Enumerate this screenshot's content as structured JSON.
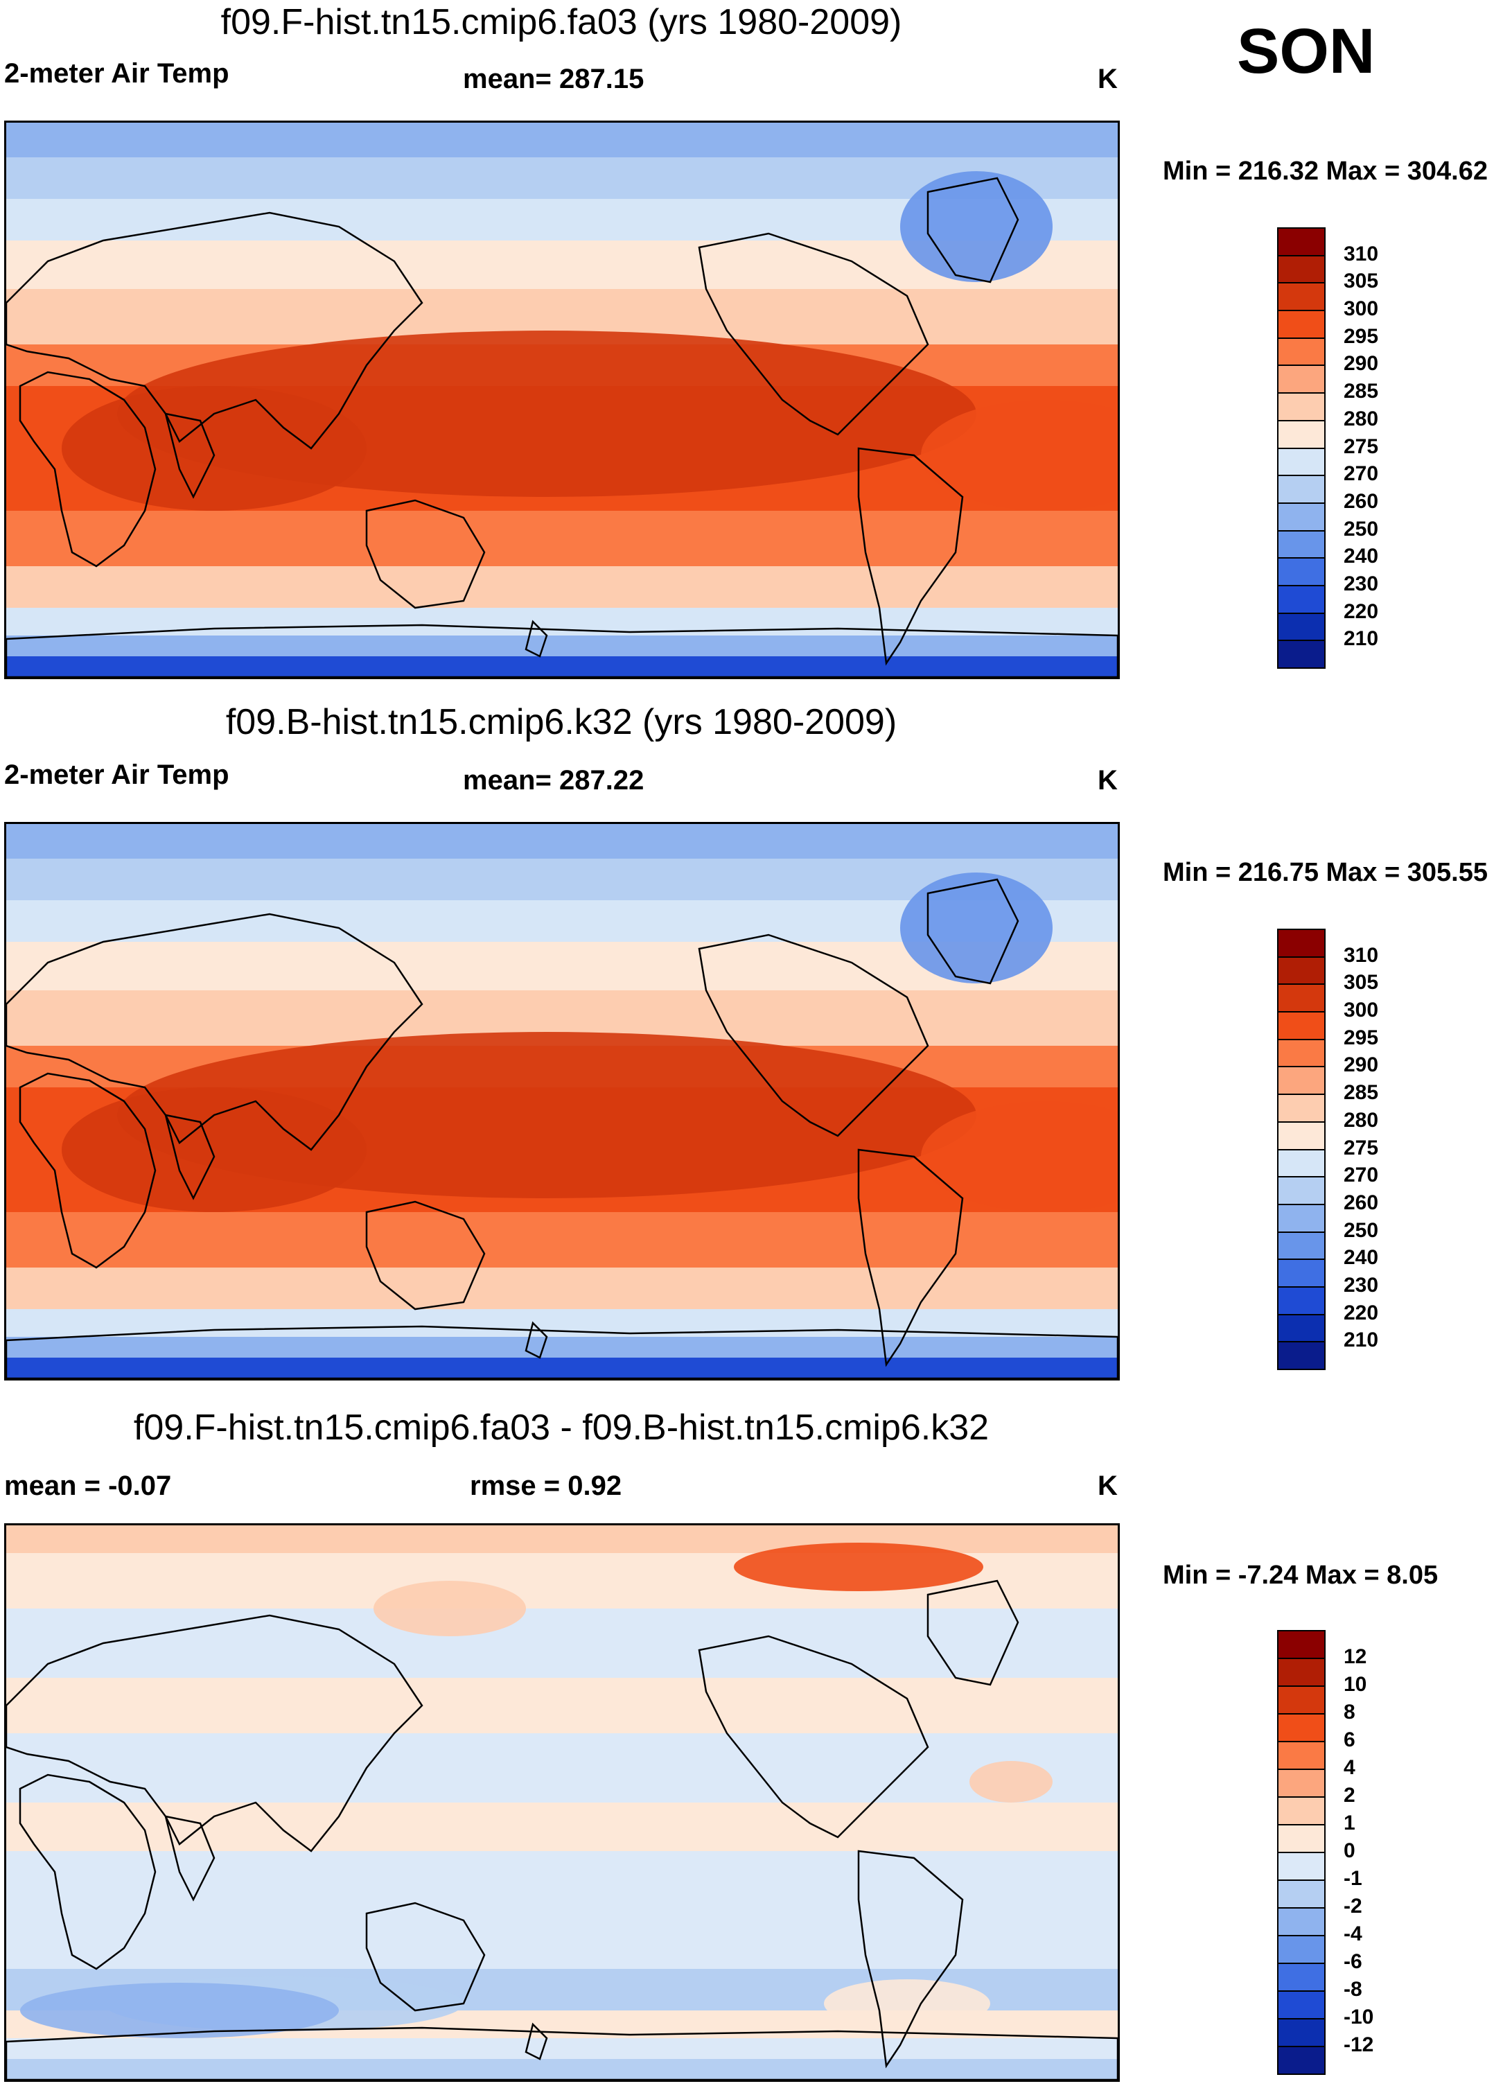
{
  "season": "SON",
  "panels": [
    {
      "title": "f09.F-hist.tn15.cmip6.fa03 (yrs 1980-2009)",
      "left_label": "2-meter Air Temp",
      "center_label": "mean= 287.15",
      "units": "K",
      "minmax": "Min = 216.32 Max = 304.62",
      "kind": "abs",
      "colorbar_labels": [
        "310",
        "305",
        "300",
        "295",
        "290",
        "285",
        "280",
        "275",
        "270",
        "260",
        "250",
        "240",
        "230",
        "220",
        "210"
      ]
    },
    {
      "title": "f09.B-hist.tn15.cmip6.k32 (yrs 1980-2009)",
      "left_label": "2-meter Air Temp",
      "center_label": "mean= 287.22",
      "units": "K",
      "minmax": "Min = 216.75 Max = 305.55",
      "kind": "abs",
      "colorbar_labels": [
        "310",
        "305",
        "300",
        "295",
        "290",
        "285",
        "280",
        "275",
        "270",
        "260",
        "250",
        "240",
        "230",
        "220",
        "210"
      ]
    },
    {
      "title": "f09.F-hist.tn15.cmip6.fa03 - f09.B-hist.tn15.cmip6.k32",
      "left_label": "mean =  -0.07",
      "center_label": "rmse =   0.92",
      "units": "K",
      "minmax": "Min =  -7.24 Max =   8.05",
      "kind": "diff",
      "colorbar_labels": [
        "12",
        "10",
        "8",
        "6",
        "4",
        "2",
        "1",
        "0",
        "-1",
        "-2",
        "-4",
        "-6",
        "-8",
        "-10",
        "-12"
      ]
    }
  ],
  "colors": {
    "abs_scale": [
      "#8b0000",
      "#b01e05",
      "#d4380d",
      "#f04e18",
      "#fa7a45",
      "#fca67e",
      "#fdcdb0",
      "#fde8d8",
      "#d6e6f7",
      "#b5cff2",
      "#8fb3ee",
      "#6895ea",
      "#3f6fe3",
      "#1f4bd4",
      "#0c2fb0",
      "#0a1c8c"
    ],
    "diff_scale": [
      "#8b0000",
      "#b01e05",
      "#d4380d",
      "#f04e18",
      "#fa7a45",
      "#fca67e",
      "#fdcdb0",
      "#fde8d8",
      "#dce9f8",
      "#b5cff2",
      "#8fb3ee",
      "#6895ea",
      "#3f6fe3",
      "#1f4bd4",
      "#0c2fb0",
      "#0a1c8c"
    ]
  },
  "chart_data": [
    {
      "type": "heatmap",
      "title": "f09.F-hist.tn15.cmip6.fa03 (yrs 1980-2009)",
      "variable": "2-meter Air Temp",
      "units": "K",
      "mean": 287.15,
      "min": 216.32,
      "max": 304.62,
      "levels": [
        210,
        220,
        230,
        240,
        250,
        260,
        270,
        275,
        280,
        285,
        290,
        295,
        300,
        305,
        310
      ]
    },
    {
      "type": "heatmap",
      "title": "f09.B-hist.tn15.cmip6.k32 (yrs 1980-2009)",
      "variable": "2-meter Air Temp",
      "units": "K",
      "mean": 287.22,
      "min": 216.75,
      "max": 305.55,
      "levels": [
        210,
        220,
        230,
        240,
        250,
        260,
        270,
        275,
        280,
        285,
        290,
        295,
        300,
        305,
        310
      ]
    },
    {
      "type": "heatmap",
      "title": "f09.F-hist.tn15.cmip6.fa03 - f09.B-hist.tn15.cmip6.k32",
      "units": "K",
      "mean": -0.07,
      "rmse": 0.92,
      "min": -7.24,
      "max": 8.05,
      "levels": [
        -12,
        -10,
        -8,
        -6,
        -4,
        -2,
        -1,
        0,
        1,
        2,
        4,
        6,
        8,
        10,
        12
      ]
    }
  ]
}
